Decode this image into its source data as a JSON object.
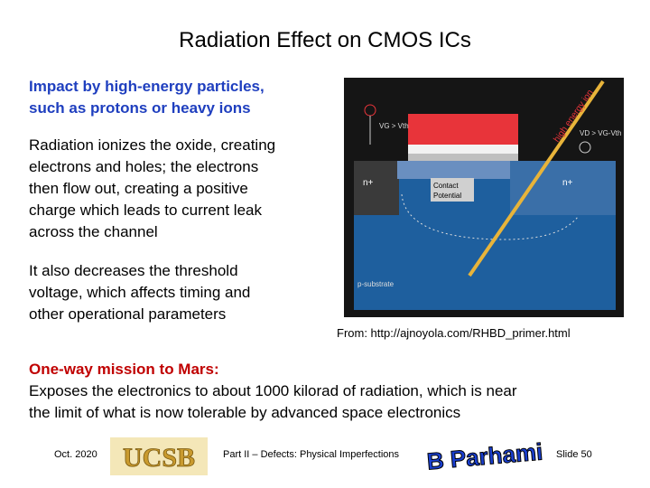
{
  "slide": {
    "title": "Radiation Effect on CMOS ICs",
    "impact": [
      "Impact by high-energy particles,",
      "such as protons or heavy ions"
    ],
    "ionizes": [
      "Radiation ionizes the oxide, creating",
      "electrons and holes; the electrons",
      "then flow out, creating a positive",
      "charge which leads to current leak",
      "across the channel"
    ],
    "threshold": [
      "It also decreases the threshold",
      "voltage, which affects timing and",
      "other operational parameters"
    ],
    "figure": {
      "gate_voltage": "VG > Vth",
      "drain_voltage": "VD > VG-Vth",
      "ion": "high energy ion",
      "source": "n+",
      "drain": "n+",
      "contact": [
        "Contact",
        "Potential"
      ],
      "substrate": "p-substrate"
    },
    "caption": "From: http://ajnoyola.com/RHBD_primer.html",
    "mars_heading": "One-way mission to Mars:",
    "mars": [
      "Exposes the electronics to about 1000 kilorad of radiation, which is near",
      "the limit of what is now tolerable by advanced space electronics"
    ],
    "footer": {
      "date": "Oct. 2020",
      "logo": "UCSB",
      "part": "Part II – Defects: Physical Imperfections",
      "author": "B Parhami",
      "slide": "Slide 50"
    }
  }
}
